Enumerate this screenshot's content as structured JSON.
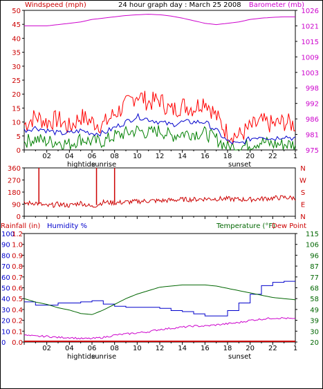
{
  "chart_data": [
    {
      "type": "line",
      "title": "24 hour graph day : March 25 2008",
      "ylabel_left": "Windspeed (mph)",
      "ylabel_right": "Barometer (mb)",
      "x_ticks": [
        "02",
        "04",
        "06",
        "08",
        "10",
        "12",
        "14",
        "16",
        "18",
        "20",
        "22",
        "1"
      ],
      "x_annotations": [
        "hightide",
        "sunrise",
        "sunset"
      ],
      "left_axis": {
        "ylim": [
          0,
          50
        ],
        "ticks": [
          "0",
          "5",
          "10",
          "15",
          "20",
          "25",
          "30",
          "35",
          "40",
          "45",
          "50"
        ]
      },
      "right_axis": {
        "ylim": [
          975,
          1029
        ],
        "ticks": [
          "975",
          "981",
          "986",
          "992",
          "998",
          "1003",
          "1009",
          "1015",
          "1021",
          "1026"
        ]
      },
      "series": [
        {
          "name": "Barometer",
          "axis": "right",
          "color": "#cc00cc",
          "x": [
            0,
            1,
            2,
            3,
            4,
            5,
            6,
            7,
            8,
            9,
            10,
            11,
            12,
            13,
            14,
            15,
            16,
            17,
            18,
            19,
            20,
            21,
            22,
            23,
            24
          ],
          "values": [
            1023,
            1023,
            1023,
            1023.5,
            1024,
            1024.5,
            1025.5,
            1026,
            1026.5,
            1027,
            1027.3,
            1027.5,
            1027.3,
            1026.8,
            1026,
            1025,
            1024,
            1023.5,
            1024,
            1024.5,
            1025.5,
            1026,
            1026.3,
            1026.5,
            1026.5
          ]
        },
        {
          "name": "Gust",
          "axis": "left",
          "color": "#ff0000",
          "x": [
            0,
            1,
            2,
            3,
            4,
            5,
            6,
            7,
            8,
            9,
            10,
            11,
            12,
            13,
            14,
            15,
            16,
            17,
            18,
            19,
            20,
            21,
            22,
            23,
            24
          ],
          "values": [
            9,
            12,
            10,
            11,
            8,
            12,
            10,
            9,
            13,
            16,
            20,
            17,
            18,
            14,
            16,
            15,
            18,
            12,
            6,
            5,
            8,
            10,
            9,
            10,
            9
          ]
        },
        {
          "name": "Wind",
          "axis": "left",
          "color": "#0000cc",
          "x": [
            0,
            1,
            2,
            3,
            4,
            5,
            6,
            7,
            8,
            9,
            10,
            11,
            12,
            13,
            14,
            15,
            16,
            17,
            18,
            19,
            20,
            21,
            22,
            23,
            24
          ],
          "values": [
            7,
            8,
            7,
            6,
            6,
            7,
            6,
            6,
            8,
            10,
            12,
            11,
            10,
            9,
            10,
            10,
            10,
            7,
            3,
            2,
            4,
            5,
            4,
            5,
            4
          ]
        },
        {
          "name": "Average",
          "axis": "left",
          "color": "#008000",
          "x": [
            0,
            1,
            2,
            3,
            4,
            5,
            6,
            7,
            8,
            9,
            10,
            11,
            12,
            13,
            14,
            15,
            16,
            17,
            18,
            19,
            20,
            21,
            22,
            23,
            24
          ],
          "values": [
            3,
            4,
            3,
            3,
            2,
            4,
            3,
            3,
            5,
            6,
            7,
            6,
            7,
            5,
            6,
            6,
            6,
            4,
            1,
            1,
            2,
            3,
            2,
            2,
            2
          ]
        }
      ]
    },
    {
      "type": "line",
      "x_ticks": [
        "02",
        "04",
        "06",
        "08",
        "10",
        "12",
        "14",
        "16",
        "18",
        "20",
        "22",
        "1"
      ],
      "left_axis": {
        "ylim": [
          0,
          360
        ],
        "ticks": [
          "0",
          "90",
          "180",
          "270",
          "360"
        ]
      },
      "right_labels": [
        "N",
        "W",
        "S",
        "E",
        "N"
      ],
      "series": [
        {
          "name": "Wind Direction",
          "color": "#cc0000",
          "x": [
            0,
            1,
            2,
            3,
            4,
            5,
            6,
            7,
            8,
            9,
            10,
            11,
            12,
            13,
            14,
            15,
            16,
            17,
            18,
            19,
            20,
            21,
            22,
            23,
            24
          ],
          "values": [
            95,
            100,
            75,
            90,
            80,
            100,
            70,
            105,
            100,
            105,
            110,
            115,
            115,
            120,
            125,
            125,
            130,
            130,
            130,
            125,
            125,
            130,
            135,
            140,
            135
          ],
          "spikes_x": [
            1.3,
            6.4,
            8.0
          ],
          "spikes_value": 360
        }
      ]
    },
    {
      "type": "line",
      "ylabel_rain": "Rainfall (in)",
      "ylabel_humidity": "Humidity %",
      "ylabel_temp": "Temperature (°F)",
      "ylabel_dew": "Dew Point",
      "x_ticks": [
        "02",
        "04",
        "06",
        "08",
        "10",
        "12",
        "14",
        "16",
        "18",
        "20",
        "22",
        "1"
      ],
      "x_annotations": [
        "hightide",
        "sunrise",
        "sunset"
      ],
      "humidity_axis": {
        "ylim": [
          0,
          100
        ],
        "ticks": [
          "0",
          "10",
          "20",
          "30",
          "40",
          "50",
          "60",
          "70",
          "80",
          "90",
          "100"
        ]
      },
      "rain_axis": {
        "ylim": [
          0,
          1.2
        ],
        "ticks": [
          "0.0",
          "0.1",
          "0.2",
          "0.4",
          "0.5",
          "0.6",
          "0.7",
          "0.8",
          "0.9",
          "1.0",
          "1.2"
        ]
      },
      "temp_axis": {
        "ylim": [
          20,
          115
        ],
        "ticks": [
          "20",
          "30",
          "39",
          "49",
          "58",
          "68",
          "77",
          "87",
          "96",
          "106",
          "115"
        ]
      },
      "series": [
        {
          "name": "Humidity",
          "axis": "humidity",
          "color": "#0000cc",
          "x": [
            0,
            1,
            2,
            3,
            4,
            5,
            6,
            7,
            8,
            9,
            10,
            11,
            12,
            13,
            14,
            15,
            16,
            17,
            18,
            19,
            20,
            21,
            22,
            23,
            24
          ],
          "values": [
            37,
            34,
            34,
            36,
            36,
            37,
            38,
            35,
            33,
            32,
            32,
            32,
            31,
            29,
            28,
            26,
            24,
            24,
            29,
            36,
            44,
            52,
            55,
            56,
            56
          ]
        },
        {
          "name": "Temperature",
          "axis": "temp",
          "color": "#006600",
          "x": [
            0,
            1,
            2,
            3,
            4,
            5,
            6,
            7,
            8,
            9,
            10,
            11,
            12,
            13,
            14,
            15,
            16,
            17,
            18,
            19,
            20,
            21,
            22,
            23,
            24
          ],
          "values": [
            58,
            55,
            53,
            50,
            48,
            45,
            44,
            48,
            53,
            58,
            62,
            65,
            68,
            69,
            70,
            70,
            70,
            69,
            67,
            65,
            63,
            61,
            59,
            58,
            57
          ]
        },
        {
          "name": "Dew Point",
          "axis": "temp",
          "color": "#cc00cc",
          "x": [
            0,
            1,
            2,
            3,
            4,
            5,
            6,
            7,
            8,
            9,
            10,
            11,
            12,
            13,
            14,
            15,
            16,
            17,
            18,
            19,
            20,
            21,
            22,
            23,
            24
          ],
          "values": [
            26,
            25,
            25,
            24,
            24,
            23,
            23,
            24,
            26,
            27,
            28,
            29,
            31,
            32,
            33,
            34,
            34,
            35,
            36,
            37,
            39,
            40,
            41,
            41,
            40
          ]
        },
        {
          "name": "Rainfall",
          "axis": "rain",
          "color": "#cc0000",
          "x": [
            0,
            24
          ],
          "values": [
            0,
            0
          ]
        }
      ]
    }
  ]
}
